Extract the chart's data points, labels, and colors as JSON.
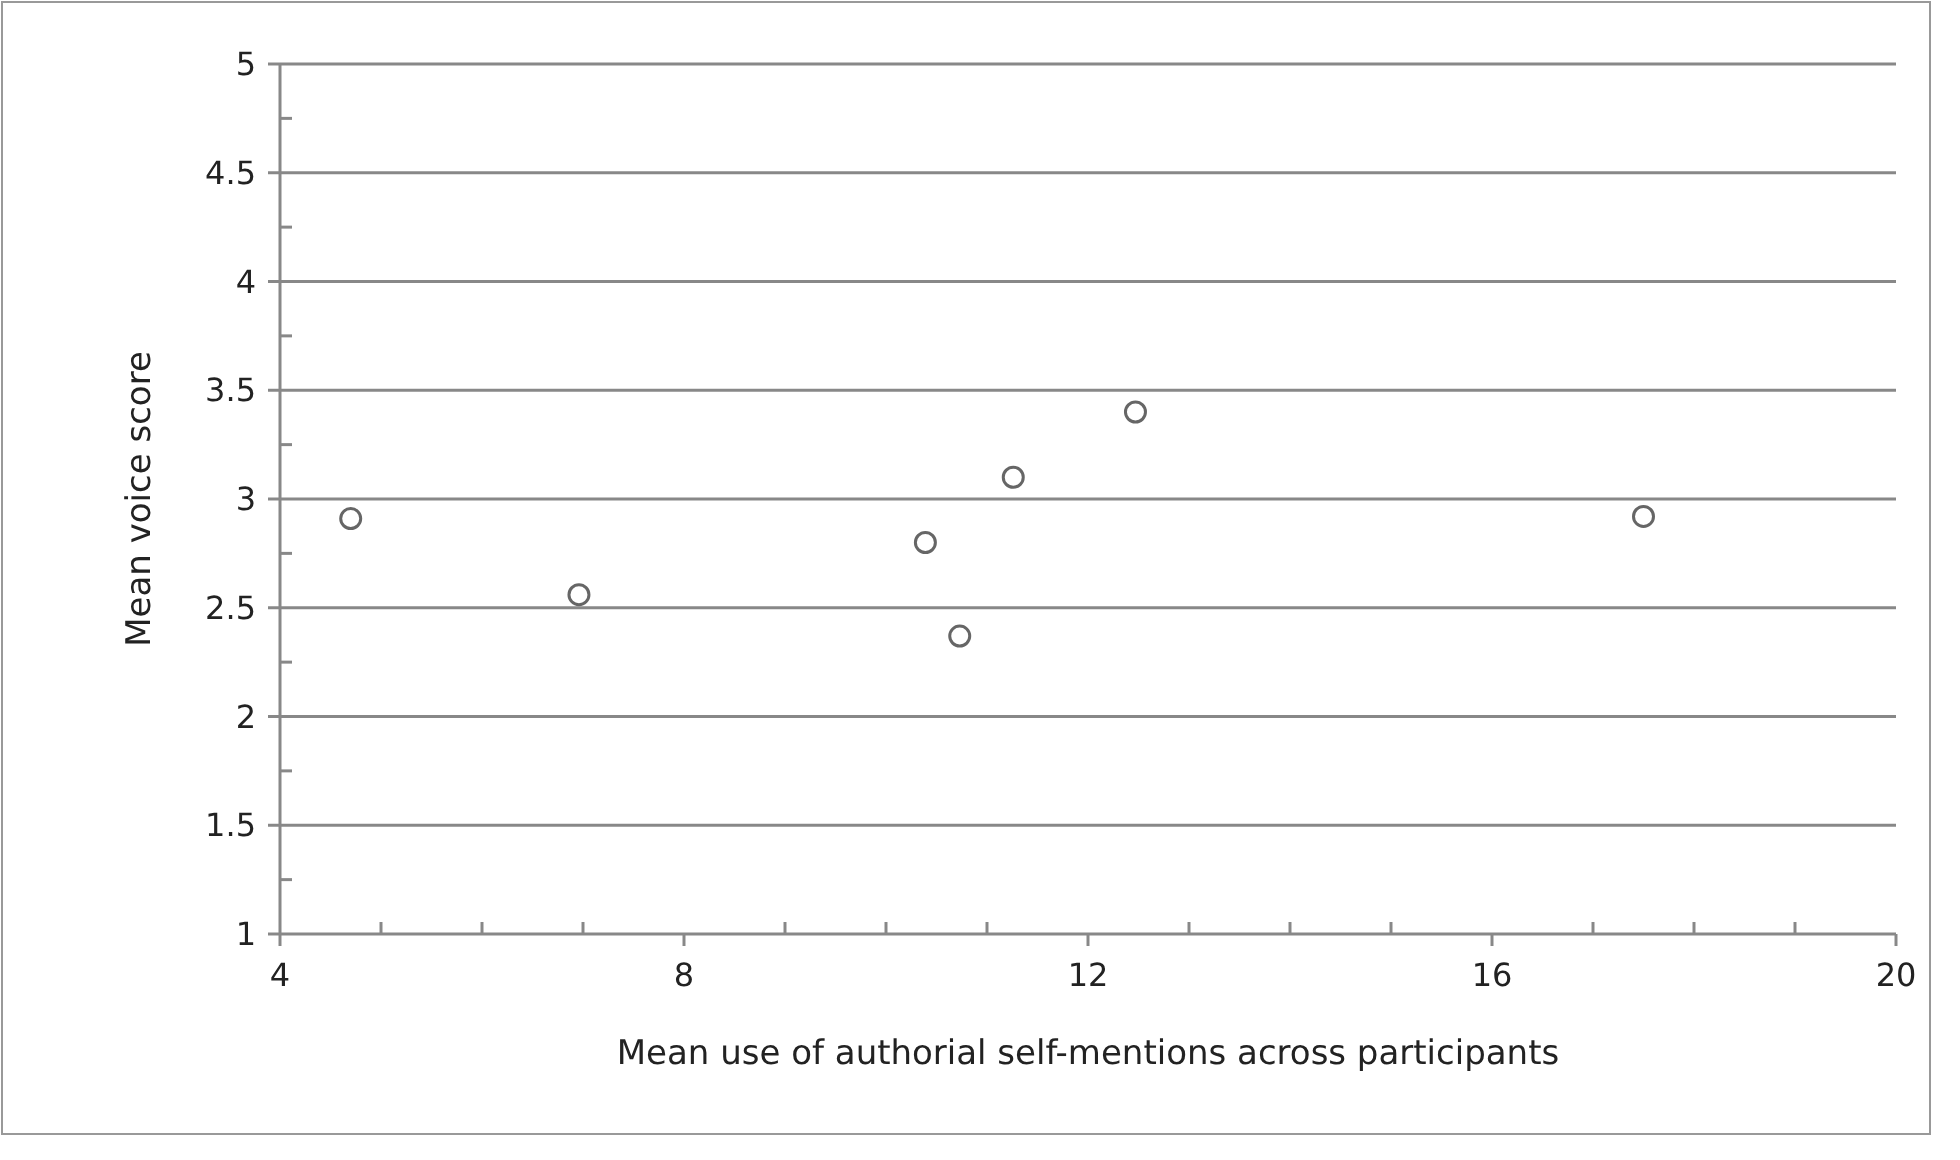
{
  "chart_data": {
    "type": "scatter",
    "xlabel": "Mean use of authorial self-mentions across participants",
    "ylabel": "Mean voice score",
    "x": [
      4.7,
      6.96,
      10.39,
      10.73,
      11.26,
      12.47,
      17.5
    ],
    "values": [
      2.91,
      2.56,
      2.8,
      2.37,
      3.1,
      3.4,
      2.92
    ],
    "color": "#ffffff",
    "marker": "circle",
    "grid": "y",
    "xlim": [
      4,
      20
    ],
    "xticks": [
      4,
      {
        "value": 5,
        "label": null
      },
      {
        "value": 6,
        "label": null
      },
      {
        "value": 7,
        "label": null
      },
      8,
      {
        "value": 9,
        "label": null
      },
      {
        "value": 10,
        "label": null
      },
      {
        "value": 11,
        "label": null
      },
      12,
      {
        "value": 13,
        "label": null
      },
      {
        "value": 14,
        "label": null
      },
      {
        "value": 15,
        "label": null
      },
      16,
      {
        "value": 17,
        "label": null
      },
      {
        "value": 18,
        "label": null
      },
      {
        "value": 19,
        "label": null
      },
      20
    ],
    "ylim": [
      1,
      5
    ],
    "yticks": [
      1,
      {
        "value": 1.25,
        "label": null
      },
      1.5,
      {
        "value": 1.75,
        "label": null
      },
      2,
      {
        "value": 2.25,
        "label": null
      },
      2.5,
      {
        "value": 2.75,
        "label": null
      },
      3,
      {
        "value": 3.25,
        "label": null
      },
      3.5,
      {
        "value": 3.75,
        "label": null
      },
      4,
      {
        "value": 4.25,
        "label": null
      },
      4.5,
      {
        "value": 4.75,
        "label": null
      },
      5
    ]
  }
}
